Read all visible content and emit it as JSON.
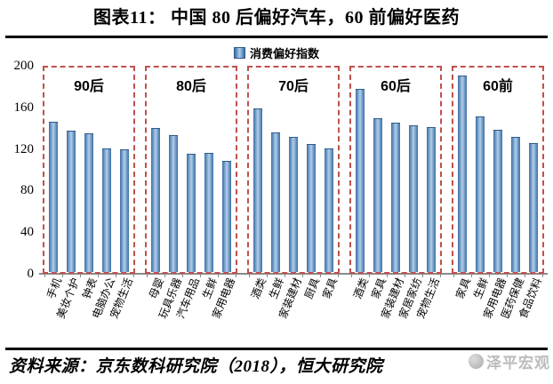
{
  "title": "图表11：  中国 80 后偏好汽车，60 前偏好医药",
  "legend": {
    "label": "消费偏好指数"
  },
  "source": "资料来源：京东数科研究院（2018），恒大研究院",
  "watermark": "泽平宏观",
  "colors": {
    "bar": "#4f81bd",
    "bar_highlight": "#b3cfe8",
    "group_box": "#c0504d",
    "axis": "#8a8a8a"
  },
  "chart_data": {
    "type": "bar",
    "title": "图表11：中国80后偏好汽车，60前偏好医药",
    "legend": "消费偏好指数",
    "ylabel": "",
    "xlabel": "",
    "ylim": [
      0,
      200
    ],
    "yticks": [
      0,
      40,
      80,
      120,
      160,
      200
    ],
    "grid": false,
    "legend_position": "top-center",
    "groups": [
      {
        "label": "90后",
        "categories": [
          "手机",
          "美妆个护",
          "钟表",
          "电脑办公",
          "宠物生活"
        ],
        "values": [
          146,
          137,
          135,
          120,
          119
        ]
      },
      {
        "label": "80后",
        "categories": [
          "母婴",
          "玩具乐器",
          "汽车用品",
          "生鲜",
          "家用电器"
        ],
        "values": [
          140,
          133,
          115,
          116,
          108
        ]
      },
      {
        "label": "70后",
        "categories": [
          "酒类",
          "生鲜",
          "家装建材",
          "厨具",
          "家具"
        ],
        "values": [
          159,
          136,
          131,
          124,
          120
        ]
      },
      {
        "label": "60后",
        "categories": [
          "酒类",
          "家具",
          "家装建材",
          "家居家纺",
          "宠物生活"
        ],
        "values": [
          178,
          150,
          145,
          143,
          141
        ]
      },
      {
        "label": "60前",
        "categories": [
          "家具",
          "生鲜",
          "家用电器",
          "医药保健",
          "食品饮料"
        ],
        "values": [
          191,
          151,
          138,
          131,
          125
        ]
      }
    ]
  }
}
